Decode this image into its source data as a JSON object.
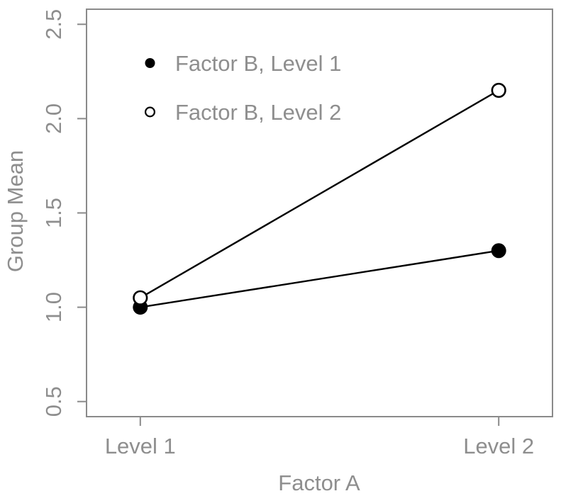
{
  "chart_data": {
    "type": "line",
    "title": "",
    "xlabel": "Factor A",
    "ylabel": "Group Mean",
    "categories": [
      "Level 1",
      "Level 2"
    ],
    "x": [
      1,
      2
    ],
    "series": [
      {
        "name": "Factor B, Level 1",
        "marker": "filled-circle",
        "color": "#000000",
        "values": [
          1.0,
          1.3
        ]
      },
      {
        "name": "Factor B, Level 2",
        "marker": "open-circle",
        "color": "#000000",
        "values": [
          1.05,
          2.15
        ]
      }
    ],
    "yticks": [
      0.5,
      1.0,
      1.5,
      2.0,
      2.5
    ],
    "ytick_labels": [
      "0.5",
      "1.0",
      "1.5",
      "2.0",
      "2.5"
    ],
    "ylim": [
      0.42,
      2.58
    ],
    "xlim": [
      0.85,
      2.15
    ],
    "grid": false,
    "legend_position": "top-left-inside",
    "axis_color": "#8a8a8a",
    "text_color": "#8e8e8e",
    "marker_fill_open": "#ffffff",
    "background": "#ffffff"
  }
}
